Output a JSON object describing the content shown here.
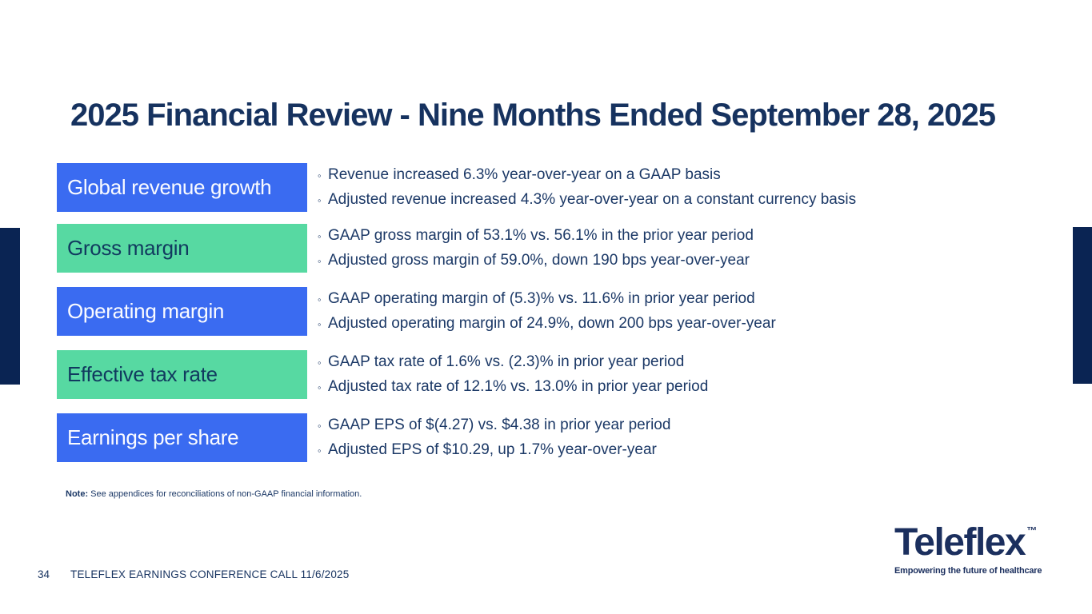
{
  "theme": {
    "navy_bar": "#0A2453",
    "navy_text": "#1B3866",
    "title_navy": "#16325F",
    "blue": "#3A6BF1",
    "green": "#57D9A2",
    "green_label_navy": "#113A5F",
    "logo_navy": "#1B2F5E"
  },
  "title": "2025 Financial Review - Nine Months Ended September 28, 2025",
  "bullet_marker": "◦",
  "rows": [
    {
      "label": "Global revenue growth",
      "variant": "blue",
      "bullets": [
        "Revenue increased 6.3% year-over-year on a GAAP basis",
        "Adjusted revenue increased 4.3% year-over-year on a constant currency basis"
      ]
    },
    {
      "label": "Gross margin",
      "variant": "green",
      "bullets": [
        "GAAP gross margin of 53.1% vs. 56.1% in the prior year period",
        "Adjusted gross margin of 59.0%, down 190 bps year-over-year"
      ]
    },
    {
      "label": "Operating margin",
      "variant": "blue",
      "bullets": [
        "GAAP operating margin of (5.3)% vs. 11.6% in prior year period",
        "Adjusted operating margin of 24.9%, down 200 bps year-over-year"
      ]
    },
    {
      "label": "Effective tax rate",
      "variant": "green",
      "bullets": [
        "GAAP tax rate of 1.6% vs. (2.3)% in prior year period",
        "Adjusted tax rate of 12.1% vs. 13.0% in prior year period"
      ]
    },
    {
      "label": "Earnings per share",
      "variant": "blue",
      "bullets": [
        "GAAP EPS of $(4.27) vs. $4.38 in prior year period",
        "Adjusted EPS of $10.29, up 1.7% year-over-year"
      ]
    }
  ],
  "note": {
    "label": "Note:",
    "text": " See appendices for reconciliations of non-GAAP financial information."
  },
  "footer": {
    "page_number": "34",
    "text": "TELEFLEX EARNINGS CONFERENCE CALL 11/6/2025"
  },
  "logo": {
    "wordmark": "Teleflex",
    "trademark": "™",
    "tagline": "Empowering the future of healthcare"
  }
}
